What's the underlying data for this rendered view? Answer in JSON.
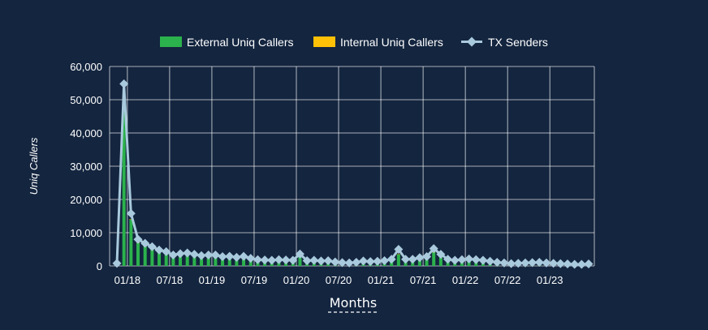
{
  "chart_data": {
    "type": "bar",
    "xlabel": "Months",
    "ylabel": "Uniq Callers",
    "ylim": [
      0,
      60000
    ],
    "y_ticks": [
      "0",
      "10,000",
      "20,000",
      "30,000",
      "40,000",
      "50,000",
      "60,000"
    ],
    "x_tick_labels": [
      "01/18",
      "07/18",
      "01/19",
      "07/19",
      "01/20",
      "07/20",
      "01/21",
      "07/21",
      "01/22",
      "07/22",
      "01/23"
    ],
    "grid": true,
    "legend_position": "top-center",
    "x": [
      "2017-11",
      "2017-12",
      "2018-01",
      "2018-02",
      "2018-03",
      "2018-04",
      "2018-05",
      "2018-06",
      "2018-07",
      "2018-08",
      "2018-09",
      "2018-10",
      "2018-11",
      "2018-12",
      "2019-01",
      "2019-02",
      "2019-03",
      "2019-04",
      "2019-05",
      "2019-06",
      "2019-07",
      "2019-08",
      "2019-09",
      "2019-10",
      "2019-11",
      "2019-12",
      "2020-01",
      "2020-02",
      "2020-03",
      "2020-04",
      "2020-05",
      "2020-06",
      "2020-07",
      "2020-08",
      "2020-09",
      "2020-10",
      "2020-11",
      "2020-12",
      "2021-01",
      "2021-02",
      "2021-03",
      "2021-04",
      "2021-05",
      "2021-06",
      "2021-07",
      "2021-08",
      "2021-09",
      "2021-10",
      "2021-11",
      "2021-12",
      "2022-01",
      "2022-02",
      "2022-03",
      "2022-04",
      "2022-05",
      "2022-06",
      "2022-07",
      "2022-08",
      "2022-09",
      "2022-10",
      "2022-11",
      "2022-12",
      "2023-01",
      "2023-02",
      "2023-03",
      "2023-04",
      "2023-05",
      "2023-06"
    ],
    "series": [
      {
        "name": "External Uniq Callers",
        "kind": "bar",
        "color": "#2bb24c",
        "values": [
          300,
          50000,
          14000,
          7000,
          6000,
          5000,
          4200,
          3800,
          3000,
          3200,
          3500,
          3000,
          2800,
          2600,
          2700,
          2300,
          2400,
          2100,
          2500,
          1800,
          1600,
          1500,
          1400,
          1600,
          1500,
          1400,
          3000,
          1200,
          1300,
          1100,
          1200,
          900,
          700,
          600,
          800,
          1200,
          1000,
          1100,
          1300,
          1500,
          3500,
          1400,
          1500,
          2000,
          2200,
          4200,
          2800,
          1600,
          1300,
          1500,
          1600,
          1500,
          1300,
          1100,
          900,
          700,
          500,
          600,
          700,
          800,
          900,
          700,
          600,
          500,
          400,
          300,
          300,
          400
        ]
      },
      {
        "name": "Internal Uniq Callers",
        "kind": "bar",
        "color": "#ffc107",
        "values": [
          0,
          100,
          60,
          40,
          30,
          30,
          20,
          20,
          20,
          20,
          20,
          20,
          20,
          20,
          20,
          20,
          20,
          20,
          20,
          20,
          20,
          20,
          20,
          20,
          20,
          20,
          20,
          20,
          20,
          20,
          20,
          20,
          20,
          20,
          20,
          20,
          20,
          20,
          20,
          20,
          20,
          20,
          20,
          20,
          20,
          20,
          20,
          20,
          20,
          20,
          20,
          20,
          20,
          20,
          20,
          20,
          20,
          20,
          20,
          20,
          20,
          20,
          20,
          20,
          20,
          20,
          20,
          20
        ]
      },
      {
        "name": "TX Senders",
        "kind": "line",
        "color": "#a9c9dc",
        "values": [
          800,
          54800,
          15800,
          8000,
          6800,
          5800,
          4800,
          4300,
          3300,
          3700,
          3900,
          3500,
          3100,
          3300,
          3300,
          2800,
          2900,
          2600,
          2900,
          2300,
          1900,
          1800,
          1700,
          1900,
          1800,
          1700,
          3600,
          1600,
          1700,
          1500,
          1600,
          1200,
          1000,
          900,
          1100,
          1500,
          1300,
          1400,
          1600,
          2000,
          5000,
          2000,
          2000,
          2500,
          2800,
          5200,
          3500,
          2000,
          1700,
          1900,
          2100,
          1900,
          1700,
          1400,
          1100,
          900,
          700,
          800,
          900,
          1000,
          1100,
          900,
          800,
          700,
          600,
          500,
          500,
          600
        ]
      }
    ]
  }
}
